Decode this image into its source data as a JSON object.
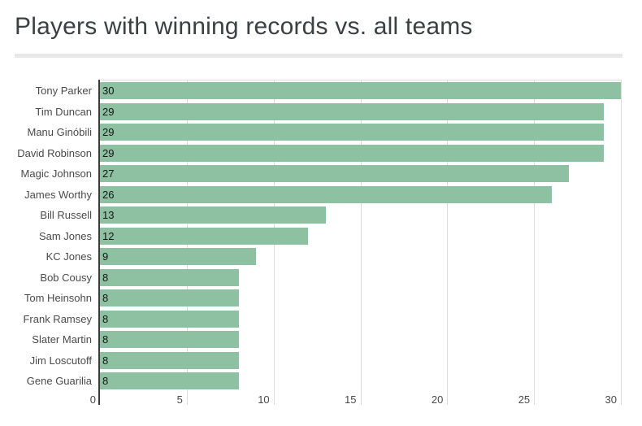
{
  "header": {
    "title": "Players with winning records vs. all teams",
    "title_color": "#3d4043",
    "divider_color": "#e8e8e8"
  },
  "chart_data": {
    "type": "bar",
    "orientation": "horizontal",
    "title": "Players with winning records vs. all teams",
    "categories": [
      "Tony Parker",
      "Tim Duncan",
      "Manu Ginóbili",
      "David Robinson",
      "Magic Johnson",
      "James Worthy",
      "Bill Russell",
      "Sam Jones",
      "KC Jones",
      "Bob Cousy",
      "Tom Heinsohn",
      "Frank Ramsey",
      "Slater Martin",
      "Jim Loscutoff",
      "Gene Guarilia"
    ],
    "values": [
      30,
      29,
      29,
      29,
      27,
      26,
      13,
      12,
      9,
      8,
      8,
      8,
      8,
      8,
      8
    ],
    "xlabel": "",
    "ylabel": "",
    "xlim": [
      0,
      30
    ],
    "x_ticks": [
      0,
      5,
      10,
      15,
      20,
      25,
      30
    ],
    "grid": true,
    "legend": "none",
    "value_labels_position": "inside-left",
    "bar_color": "#8ec0a2",
    "value_label_color": "#161616",
    "category_label_color": "#4a4a4a",
    "tick_label_color": "#4a4a4a",
    "gridline_color": "#dcdcdc",
    "axis_line_color": "#3a3a3a"
  }
}
